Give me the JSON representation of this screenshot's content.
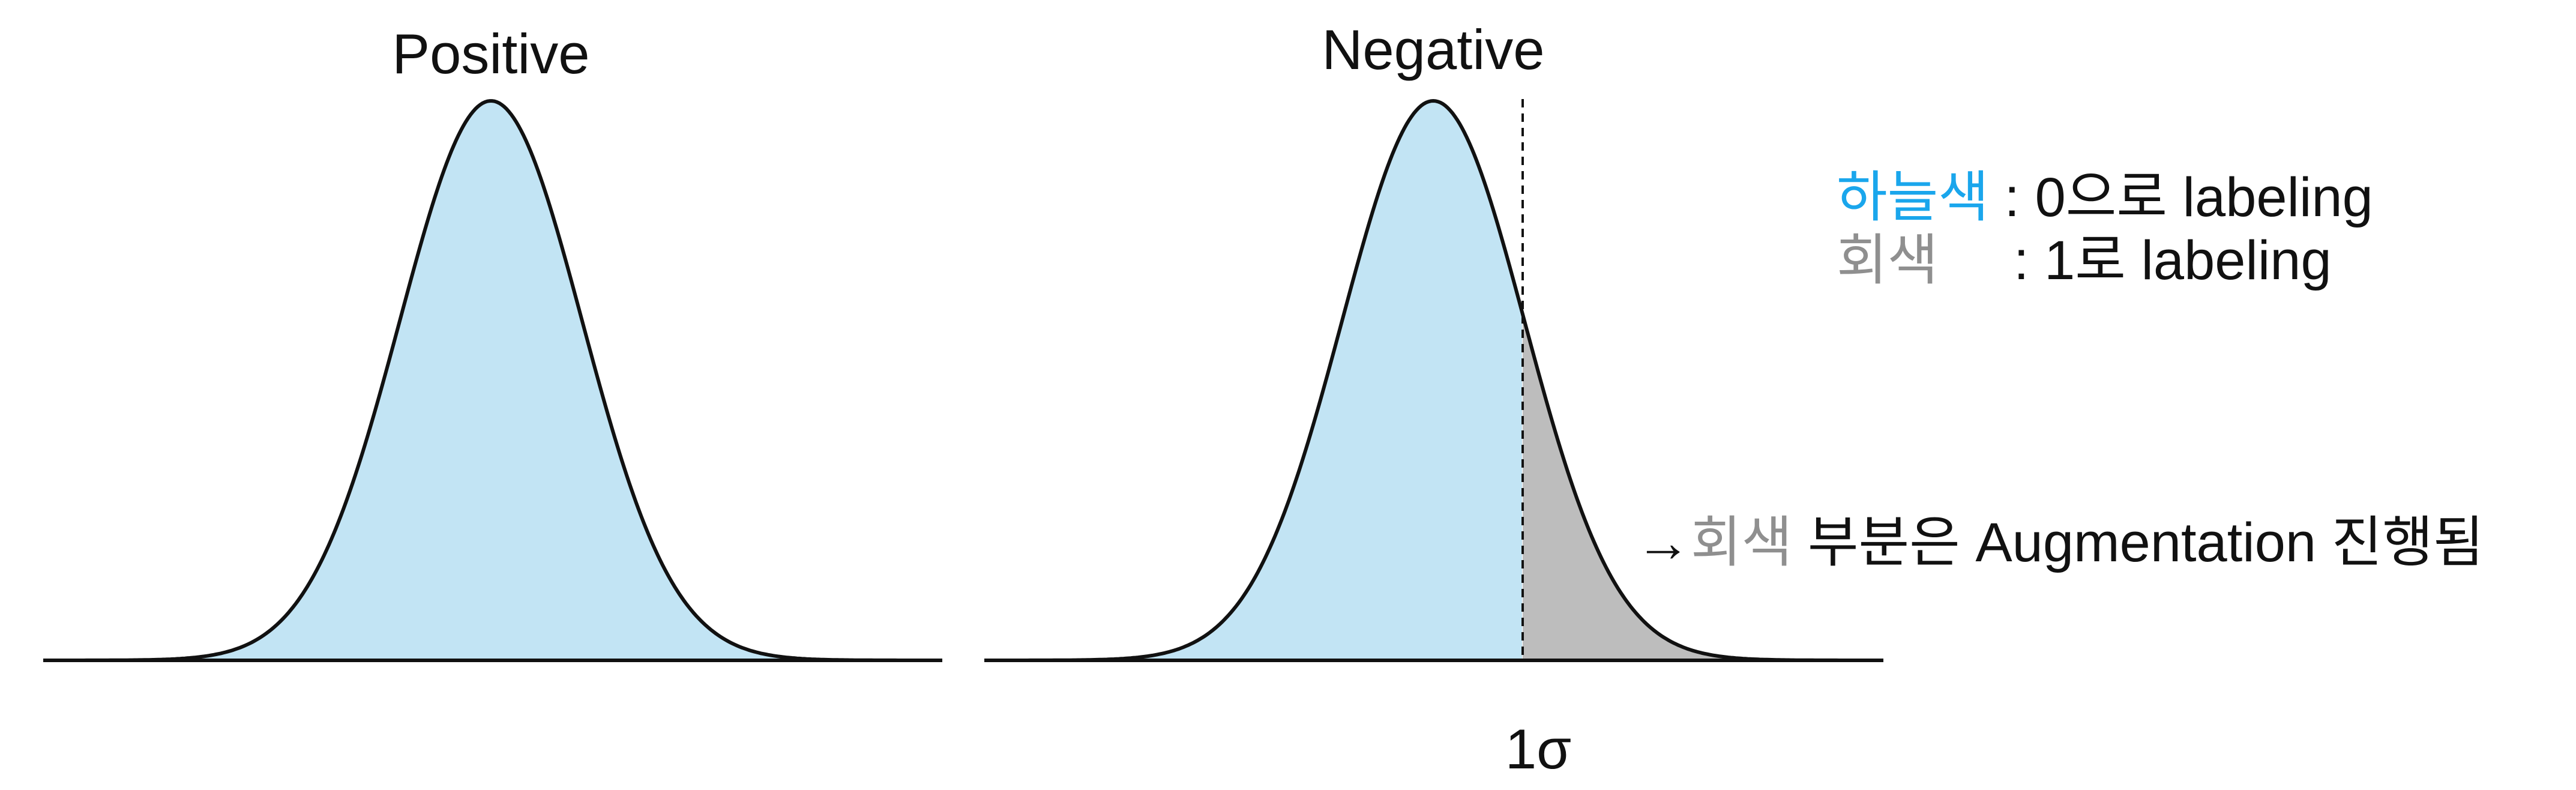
{
  "panels": [
    {
      "title": "Positive"
    },
    {
      "title": "Negative"
    }
  ],
  "colors": {
    "sky_blue": "#c2e4f4",
    "gray": "#bdbdbd",
    "sky_blue_text": "#1aa6ec",
    "gray_text": "#8f8f8f",
    "line": "#111111"
  },
  "legend": {
    "sky_label": "하늘색",
    "sky_desc": " : 0으로 labeling",
    "gray_label": "회색",
    "gray_desc": ": 1로 labeling"
  },
  "note": {
    "arrow": "→",
    "gray_word": "회색",
    "rest": " 부분은 Augmentation 진행됨"
  },
  "threshold": {
    "label": "1σ",
    "sigma": 1
  }
}
